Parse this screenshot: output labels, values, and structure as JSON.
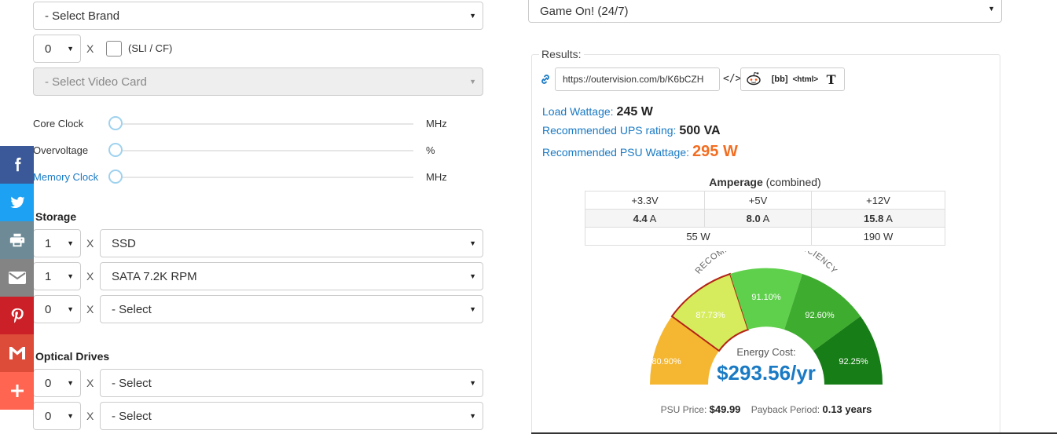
{
  "left": {
    "brand_select": "- Select Brand",
    "gpu_qty": "0",
    "x": "X",
    "sli_label": "(SLI / CF)",
    "video_card_select": "- Select Video Card",
    "sliders": [
      {
        "label": "Core Clock",
        "unit": "MHz"
      },
      {
        "label": "Overvoltage",
        "unit": "%"
      },
      {
        "label": "Memory Clock",
        "unit": "MHz"
      }
    ],
    "storage_title": "Storage",
    "storage": [
      {
        "qty": "1",
        "value": "SSD"
      },
      {
        "qty": "1",
        "value": "SATA 7.2K RPM"
      },
      {
        "qty": "0",
        "value": "- Select"
      }
    ],
    "optical_title": "Optical Drives",
    "optical": [
      {
        "qty": "0",
        "value": "- Select"
      },
      {
        "qty": "0",
        "value": "- Select"
      }
    ]
  },
  "right": {
    "usage_select": "Game On! (24/7)",
    "results_legend": "Results:",
    "share_url": "https://outervision.com/b/K6bCZH",
    "share_bb": "[bb]",
    "share_html": "<html>",
    "share_t": "T",
    "load_label": "Load Wattage:",
    "load_value": "245 W",
    "ups_label": "Recommended UPS rating:",
    "ups_value": "500 VA",
    "psu_label": "Recommended PSU Wattage:",
    "psu_value": "295 W",
    "amperage_title": "Amperage",
    "amperage_sub": "(combined)",
    "rails": [
      "+3.3V",
      "+5V",
      "+12V"
    ],
    "amps": [
      "4.4",
      "8.0",
      "15.8"
    ],
    "amp_unit": "A",
    "watts_low": "55 W",
    "watts_12v": "190 W",
    "gauge_title": "RECOMMENDED PSU EFFICIENCY",
    "gauge_segments": [
      {
        "label": "80.90%",
        "color": "#f5b731"
      },
      {
        "label": "87.73%",
        "color": "#d6ec5c"
      },
      {
        "label": "91.10%",
        "color": "#5fd04c"
      },
      {
        "label": "92.60%",
        "color": "#3eac2e"
      },
      {
        "label": "92.25%",
        "color": "#177d16"
      }
    ],
    "energy_label": "Energy Cost:",
    "energy_value": "$293.56/yr",
    "psu_price_label": "PSU Price:",
    "psu_price": "$49.99",
    "payback_label": "Payback Period:",
    "payback": "0.13 years"
  },
  "social": [
    {
      "name": "facebook-icon",
      "color": "#3b5998"
    },
    {
      "name": "twitter-icon",
      "color": "#1da1f2"
    },
    {
      "name": "print-icon",
      "color": "#6d8a96"
    },
    {
      "name": "email-icon",
      "color": "#848484"
    },
    {
      "name": "pinterest-icon",
      "color": "#cb2027"
    },
    {
      "name": "gmail-icon",
      "color": "#dd4b39"
    },
    {
      "name": "more-icon",
      "color": "#ff6550"
    }
  ]
}
